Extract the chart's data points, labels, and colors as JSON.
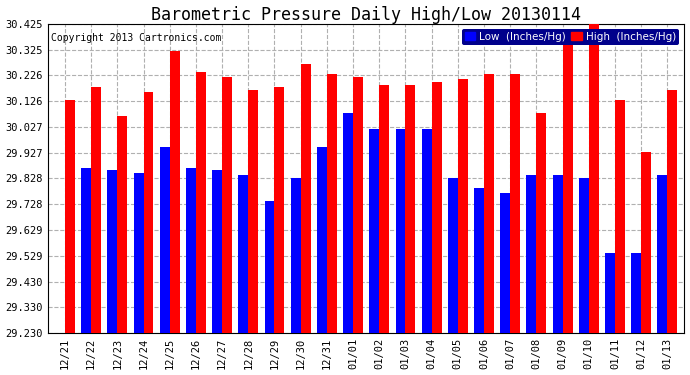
{
  "title": "Barometric Pressure Daily High/Low 20130114",
  "copyright": "Copyright 2013 Cartronics.com",
  "legend_low": "Low  (Inches/Hg)",
  "legend_high": "High  (Inches/Hg)",
  "categories": [
    "12/21",
    "12/22",
    "12/23",
    "12/24",
    "12/25",
    "12/26",
    "12/27",
    "12/28",
    "12/29",
    "12/30",
    "12/31",
    "01/01",
    "01/02",
    "01/03",
    "01/04",
    "01/05",
    "01/06",
    "01/07",
    "01/08",
    "01/09",
    "01/10",
    "01/11",
    "01/12",
    "01/13"
  ],
  "high_values": [
    30.13,
    30.18,
    30.07,
    30.16,
    30.32,
    30.24,
    30.22,
    30.17,
    30.18,
    30.27,
    30.23,
    30.22,
    30.19,
    30.19,
    30.2,
    30.21,
    30.23,
    30.23,
    30.08,
    30.4,
    30.43,
    30.13,
    29.93,
    30.17
  ],
  "low_values": [
    29.23,
    29.87,
    29.86,
    29.85,
    29.95,
    29.87,
    29.86,
    29.84,
    29.74,
    29.83,
    29.95,
    30.08,
    30.02,
    30.02,
    30.02,
    29.83,
    29.79,
    29.77,
    29.84,
    29.84,
    29.83,
    29.54,
    29.54,
    29.84
  ],
  "ymin": 29.23,
  "ymax": 30.425,
  "yticks": [
    29.23,
    29.33,
    29.43,
    29.529,
    29.629,
    29.728,
    29.828,
    29.927,
    30.027,
    30.126,
    30.226,
    30.325,
    30.425
  ],
  "bar_width": 0.38,
  "high_color": "#ff0000",
  "low_color": "#0000ff",
  "bg_color": "#ffffff",
  "grid_color": "#b0b0b0",
  "title_fontsize": 12,
  "tick_fontsize": 7.5,
  "legend_fontsize": 7.5,
  "copyright_fontsize": 7
}
